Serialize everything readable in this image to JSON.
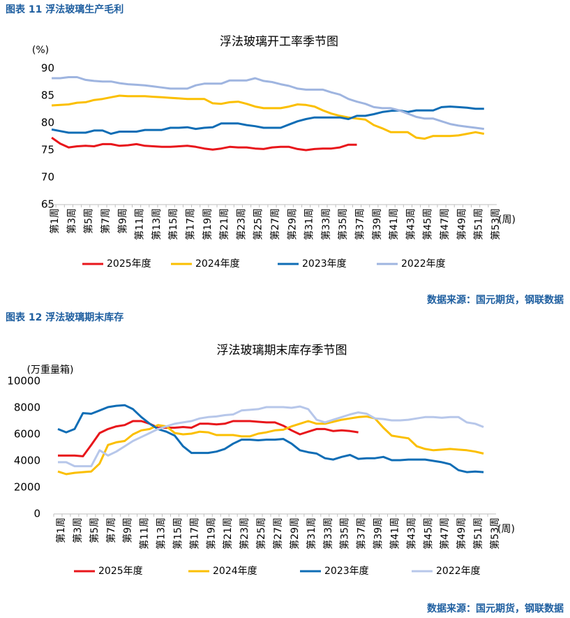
{
  "chart_data": [
    {
      "type": "line",
      "caption": "图表 11  浮法玻璃生产毛利",
      "title": "浮法玻璃开工率季节图",
      "ylabel": "(%)",
      "xlabel": "(周)",
      "source": "数据来源：国元期货，钢联数据",
      "categories": [
        "第1周",
        null,
        "第3周",
        null,
        "第5周",
        null,
        "第7周",
        null,
        "第9周",
        null,
        "第11周",
        null,
        "第13周",
        null,
        "第15周",
        null,
        "第17周",
        null,
        "第19周",
        null,
        "第21周",
        null,
        "第23周",
        null,
        "第25周",
        null,
        "第27周",
        null,
        "第29周",
        null,
        "第31周",
        null,
        "第33周",
        null,
        "第35周",
        null,
        "第37周",
        null,
        "第39周",
        null,
        "第41周",
        null,
        "第43周",
        null,
        "第45周",
        null,
        "第47周",
        null,
        "第49周",
        null,
        "第51周",
        null,
        "第53周"
      ],
      "ylim": [
        65,
        90
      ],
      "yticks": [
        65,
        70,
        75,
        80,
        85,
        90
      ],
      "grid": false,
      "legend": "bottom",
      "series": [
        {
          "name": "2025年度",
          "color": "#e8161b",
          "values": [
            77.3,
            76.2,
            75.5,
            75.7,
            75.8,
            75.7,
            76.1,
            76.1,
            75.8,
            75.9,
            76.1,
            75.8,
            75.7,
            75.6,
            75.6,
            75.7,
            75.8,
            75.6,
            75.3,
            75.1,
            75.3,
            75.6,
            75.5,
            75.5,
            75.3,
            75.2,
            75.5,
            75.6,
            75.6,
            75.2,
            75.0,
            75.2,
            75.3,
            75.3,
            75.5,
            76.0,
            76.0,
            null,
            null,
            null,
            null,
            null,
            null,
            null,
            null,
            null,
            null,
            null,
            null,
            null,
            null,
            null,
            null
          ]
        },
        {
          "name": "2024年度",
          "color": "#fbbf00",
          "values": [
            83.2,
            83.3,
            83.4,
            83.7,
            83.8,
            84.2,
            84.4,
            84.7,
            85.0,
            84.9,
            84.9,
            84.9,
            84.8,
            84.7,
            84.6,
            84.5,
            84.4,
            84.4,
            84.4,
            83.6,
            83.5,
            83.8,
            83.9,
            83.5,
            83.0,
            82.7,
            82.7,
            82.7,
            83.0,
            83.4,
            83.3,
            83.0,
            82.3,
            81.7,
            81.3,
            81.0,
            80.8,
            80.6,
            79.6,
            79.0,
            78.3,
            78.3,
            78.3,
            77.3,
            77.1,
            77.6,
            77.6,
            77.6,
            77.7,
            78.0,
            78.3,
            78.0,
            null
          ]
        },
        {
          "name": "2023年度",
          "color": "#0f6db5",
          "values": [
            78.8,
            78.5,
            78.2,
            78.2,
            78.2,
            78.6,
            78.6,
            78.0,
            78.4,
            78.4,
            78.4,
            78.7,
            78.7,
            78.7,
            79.1,
            79.1,
            79.2,
            78.9,
            79.1,
            79.2,
            79.9,
            79.9,
            79.9,
            79.6,
            79.4,
            79.1,
            79.1,
            79.1,
            79.7,
            80.3,
            80.7,
            81.0,
            81.0,
            81.0,
            81.0,
            80.7,
            81.3,
            81.3,
            81.6,
            82.0,
            82.2,
            82.3,
            82.0,
            82.3,
            82.3,
            82.3,
            82.9,
            83.0,
            82.9,
            82.8,
            82.6,
            82.6,
            null
          ]
        },
        {
          "name": "2022年度",
          "color": "#9fb5e0",
          "values": [
            88.2,
            88.2,
            88.4,
            88.4,
            87.9,
            87.7,
            87.6,
            87.6,
            87.3,
            87.1,
            87.0,
            86.9,
            86.7,
            86.5,
            86.3,
            86.3,
            86.3,
            86.9,
            87.2,
            87.2,
            87.2,
            87.8,
            87.8,
            87.8,
            88.2,
            87.7,
            87.5,
            87.1,
            86.8,
            86.3,
            86.1,
            86.1,
            86.1,
            85.6,
            85.2,
            84.4,
            83.9,
            83.5,
            82.9,
            82.7,
            82.7,
            82.3,
            81.7,
            81.1,
            80.8,
            80.8,
            80.3,
            79.8,
            79.5,
            79.3,
            79.1,
            78.9,
            null
          ]
        }
      ]
    },
    {
      "type": "line",
      "caption": "图表 12  浮法玻璃期末库存",
      "title": "浮法玻璃期末库存季节图",
      "ylabel": "(万重量箱)",
      "xlabel": "(周)",
      "source": "数据来源：国元期货，钢联数据",
      "categories": [
        "第1周",
        null,
        "第3周",
        null,
        "第5周",
        null,
        "第7周",
        null,
        "第9周",
        null,
        "第11周",
        null,
        "第13周",
        null,
        "第15周",
        null,
        "第17周",
        null,
        "第19周",
        null,
        "第21周",
        null,
        "第23周",
        null,
        "第25周",
        null,
        "第27周",
        null,
        "第29周",
        null,
        "第31周",
        null,
        "第33周",
        null,
        "第35周",
        null,
        "第37周",
        null,
        "第39周",
        null,
        "第41周",
        null,
        "第43周",
        null,
        "第45周",
        null,
        "第47周",
        null,
        "第49周",
        null,
        "第51周",
        null,
        "第53周"
      ],
      "ylim": [
        0,
        10000
      ],
      "yticks": [
        0,
        2000,
        4000,
        6000,
        8000,
        10000
      ],
      "grid": false,
      "legend": "bottom",
      "series": [
        {
          "name": "2025年度",
          "color": "#e8161b",
          "values": [
            4400,
            4400,
            4400,
            4350,
            5200,
            6100,
            6400,
            6600,
            6700,
            7000,
            7000,
            6800,
            6500,
            6500,
            6500,
            6550,
            6500,
            6800,
            6800,
            6750,
            6800,
            7000,
            7000,
            7000,
            6950,
            6900,
            6900,
            6650,
            6300,
            6000,
            6200,
            6400,
            6400,
            6250,
            6300,
            6250,
            6150,
            null,
            null,
            null,
            null,
            null,
            null,
            null,
            null,
            null,
            null,
            null,
            null,
            null,
            null,
            null,
            null
          ]
        },
        {
          "name": "2024年度",
          "color": "#fbbf00",
          "values": [
            3200,
            3000,
            3100,
            3150,
            3200,
            3800,
            5200,
            5400,
            5500,
            6000,
            6300,
            6400,
            6700,
            6600,
            6100,
            6000,
            6050,
            6200,
            6150,
            5950,
            5950,
            5950,
            5850,
            5850,
            6050,
            6150,
            6300,
            6350,
            6600,
            6800,
            7000,
            6800,
            6800,
            6950,
            7100,
            7200,
            7300,
            7350,
            7200,
            6500,
            5900,
            5800,
            5700,
            5100,
            4900,
            4800,
            4850,
            4900,
            4850,
            4800,
            4700,
            4550,
            null
          ]
        },
        {
          "name": "2023年度",
          "color": "#0f6db5",
          "values": [
            6400,
            6150,
            6400,
            7600,
            7550,
            7800,
            8050,
            8150,
            8200,
            7900,
            7300,
            6800,
            6400,
            6200,
            5900,
            5100,
            4600,
            4600,
            4600,
            4700,
            4900,
            5300,
            5600,
            5600,
            5550,
            5600,
            5600,
            5650,
            5300,
            4800,
            4650,
            4550,
            4200,
            4100,
            4300,
            4450,
            4150,
            4200,
            4200,
            4300,
            4050,
            4050,
            4100,
            4100,
            4100,
            4000,
            3900,
            3750,
            3300,
            3150,
            3200,
            3150,
            null
          ]
        },
        {
          "name": "2022年度",
          "color": "#b7c7ea",
          "values": [
            3900,
            3900,
            3600,
            3600,
            3600,
            4800,
            4400,
            4700,
            5100,
            5500,
            5800,
            6100,
            6400,
            6600,
            6800,
            6900,
            7000,
            7200,
            7300,
            7350,
            7450,
            7500,
            7800,
            7850,
            7900,
            8050,
            8050,
            8050,
            8000,
            8100,
            7900,
            7100,
            6900,
            7100,
            7300,
            7500,
            7650,
            7550,
            7200,
            7150,
            7050,
            7050,
            7100,
            7200,
            7300,
            7300,
            7250,
            7300,
            7300,
            6900,
            6800,
            6550,
            null
          ]
        }
      ]
    }
  ]
}
